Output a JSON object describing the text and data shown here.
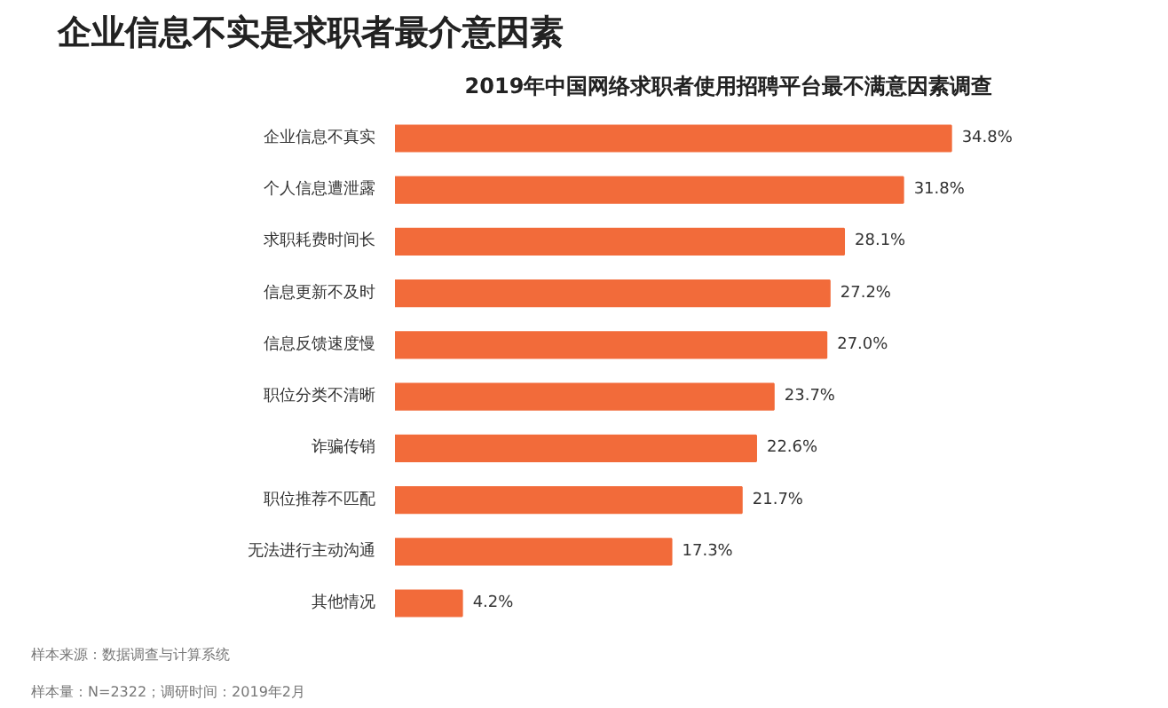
{
  "chart_data": {
    "type": "bar",
    "orientation": "horizontal",
    "title": "企业信息不实是求职者最介意因素",
    "subtitle": "2019年中国网络求职者使用招聘平台最不满意因素调查",
    "categories": [
      "企业信息不真实",
      "个人信息遭泄露",
      "求职耗费时间长",
      "信息更新不及时",
      "信息反馈速度慢",
      "职位分类不清晰",
      "诈骗传销",
      "职位推荐不匹配",
      "无法进行主动沟通",
      "其他情况"
    ],
    "values": [
      34.8,
      31.8,
      28.1,
      27.2,
      27.0,
      23.7,
      22.6,
      21.7,
      17.3,
      4.2
    ],
    "value_labels": [
      "34.8%",
      "31.8%",
      "28.1%",
      "27.2%",
      "27.0%",
      "23.7%",
      "22.6%",
      "21.7%",
      "17.3%",
      "4.2%"
    ],
    "color": "#f26b3a",
    "grid": false,
    "annotations": [
      "样本来源：数据调查与计算系统",
      "样本量：N=2322；调研时间：2019年2月"
    ]
  }
}
